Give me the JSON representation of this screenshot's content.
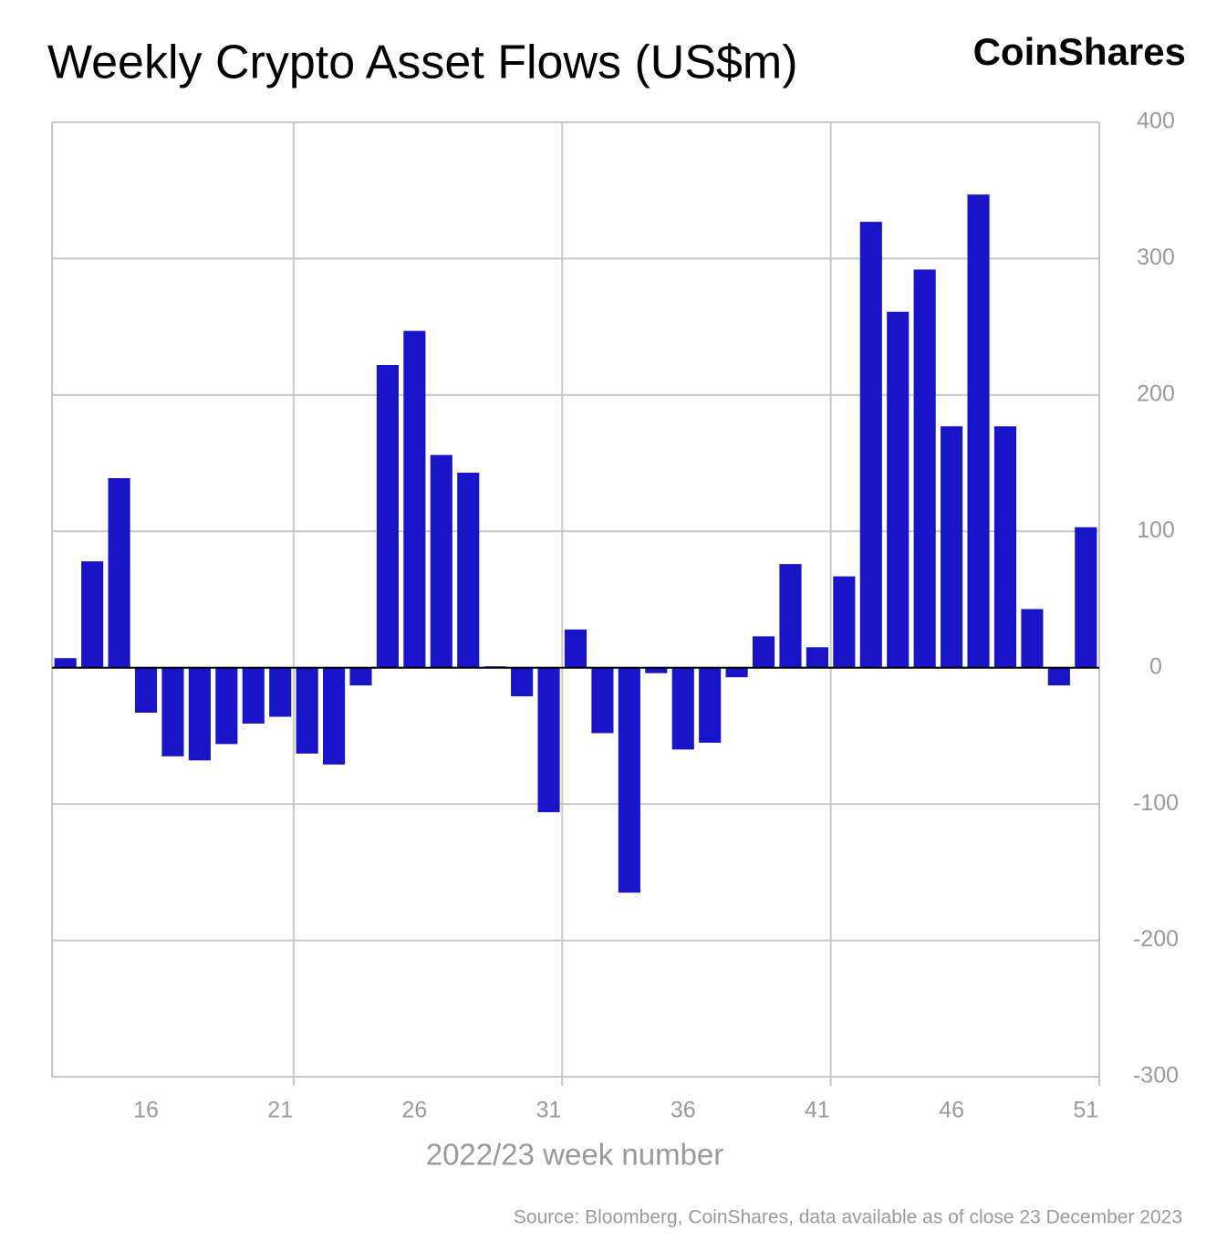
{
  "chart_data": {
    "type": "bar",
    "title": "Weekly Crypto Asset Flows (US$m)",
    "brand": "CoinShares",
    "x_label": "2022/23 week number",
    "source": "Source: Bloomberg, CoinShares, data available as of close 23 December 2023",
    "categories": [
      null,
      null,
      null,
      16,
      null,
      null,
      null,
      null,
      21,
      null,
      null,
      null,
      null,
      26,
      null,
      null,
      null,
      null,
      31,
      null,
      null,
      null,
      null,
      36,
      null,
      null,
      null,
      null,
      41,
      null,
      null,
      null,
      null,
      46,
      null,
      null,
      null,
      null,
      51
    ],
    "values": [
      7,
      78,
      139,
      -33,
      -65,
      -68,
      -56,
      -41,
      -36,
      -63,
      -71,
      -13,
      222,
      247,
      156,
      143,
      1,
      -21,
      -106,
      28,
      -48,
      -165,
      -4,
      -60,
      -55,
      -7,
      23,
      76,
      15,
      67,
      327,
      261,
      292,
      177,
      347,
      177,
      43,
      -13,
      103
    ],
    "color": "#1a14c8",
    "ylim": [
      -300,
      400
    ],
    "yticks": [
      -300,
      -200,
      -100,
      0,
      100,
      200,
      300,
      400
    ],
    "grid": true
  }
}
